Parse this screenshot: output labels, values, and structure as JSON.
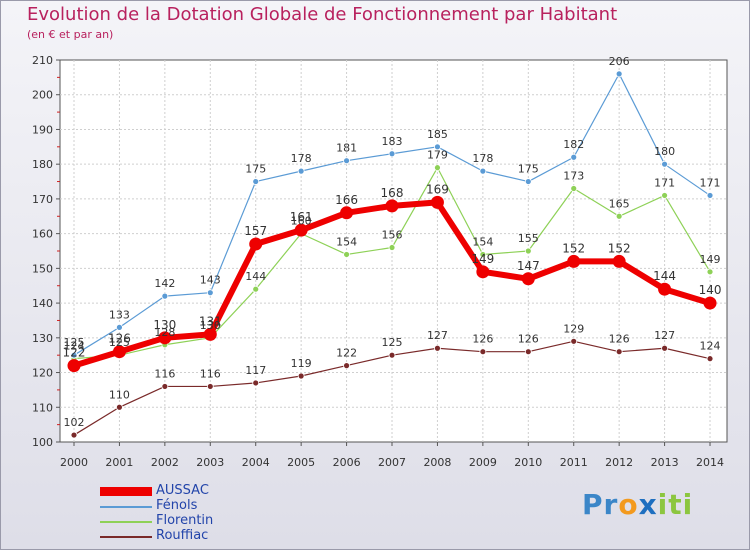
{
  "chart_data": {
    "type": "line",
    "title": "Evolution de la Dotation Globale de Fonctionnement par Habitant",
    "subtitle": "(en € et par an)",
    "xlabel": "",
    "ylabel": "",
    "x": [
      "2000",
      "2001",
      "2002",
      "2003",
      "2004",
      "2005",
      "2006",
      "2007",
      "2008",
      "2009",
      "2010",
      "2011",
      "2012",
      "2013",
      "2014"
    ],
    "ylim": [
      100,
      210
    ],
    "yticks": [
      "100",
      "110",
      "120",
      "130",
      "140",
      "150",
      "160",
      "170",
      "180",
      "190",
      "200",
      "210"
    ],
    "grid": true,
    "legend_position": "bottom-left",
    "series": [
      {
        "name": "AUSSAC",
        "color": "#ee0000",
        "values": [
          122,
          126,
          130,
          131,
          157,
          161,
          166,
          168,
          169,
          149,
          147,
          152,
          152,
          144,
          140
        ]
      },
      {
        "name": "Fénols",
        "color": "#5b9bd5",
        "values": [
          125,
          133,
          142,
          143,
          175,
          178,
          181,
          183,
          185,
          178,
          175,
          182,
          206,
          180,
          171
        ]
      },
      {
        "name": "Florentin",
        "color": "#8ed157",
        "values": [
          124,
          125,
          128,
          130,
          144,
          160,
          154,
          156,
          179,
          154,
          155,
          173,
          165,
          171,
          149
        ]
      },
      {
        "name": "Rouffiac",
        "color": "#7a2a2a",
        "values": [
          102,
          110,
          116,
          116,
          117,
          119,
          122,
          125,
          127,
          126,
          126,
          129,
          126,
          127,
          124
        ]
      }
    ]
  },
  "logo": {
    "parts": [
      "Pr",
      "o",
      "x",
      "iti"
    ],
    "colors": [
      "#3b86c8",
      "#f39a1e",
      "#1e6fc0",
      "#8cc63f"
    ]
  }
}
